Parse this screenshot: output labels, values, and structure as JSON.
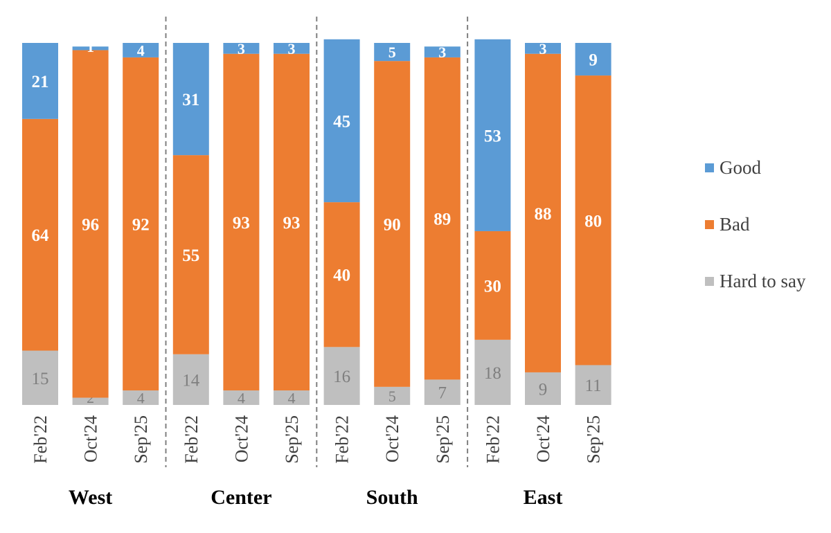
{
  "chart_data": {
    "type": "bar",
    "stacked": true,
    "percent": true,
    "groups": [
      "West",
      "Center",
      "South",
      "East"
    ],
    "categories": [
      {
        "group": "West",
        "label": "Feb'22"
      },
      {
        "group": "West",
        "label": "Oct'24"
      },
      {
        "group": "West",
        "label": "Sep'25"
      },
      {
        "group": "Center",
        "label": "Feb'22"
      },
      {
        "group": "Center",
        "label": "Oct'24"
      },
      {
        "group": "Center",
        "label": "Sep'25"
      },
      {
        "group": "South",
        "label": "Feb'22"
      },
      {
        "group": "South",
        "label": "Oct'24"
      },
      {
        "group": "South",
        "label": "Sep'25"
      },
      {
        "group": "East",
        "label": "Feb'22"
      },
      {
        "group": "East",
        "label": "Oct'24"
      },
      {
        "group": "East",
        "label": "Sep'25"
      }
    ],
    "series": [
      {
        "name": "Hard to say",
        "color": "#bfbfbf",
        "label_color": "#7f7f7f",
        "values": [
          15,
          2,
          4,
          14,
          4,
          4,
          16,
          5,
          7,
          18,
          9,
          11
        ]
      },
      {
        "name": "Bad",
        "color": "#ed7d31",
        "label_color": "#ffffff",
        "values": [
          64,
          96,
          92,
          55,
          93,
          93,
          40,
          90,
          89,
          30,
          88,
          80
        ]
      },
      {
        "name": "Good",
        "color": "#5b9bd5",
        "label_color": "#ffffff",
        "values": [
          21,
          1,
          4,
          31,
          3,
          3,
          45,
          5,
          3,
          53,
          3,
          9
        ]
      }
    ],
    "ylim": [
      0,
      100
    ],
    "title": "",
    "xlabel": "",
    "ylabel": "",
    "legend_position": "right"
  },
  "legend": [
    {
      "name": "Good",
      "color": "#5b9bd5"
    },
    {
      "name": "Bad",
      "color": "#ed7d31"
    },
    {
      "name": "Hard to say",
      "color": "#bfbfbf"
    }
  ]
}
